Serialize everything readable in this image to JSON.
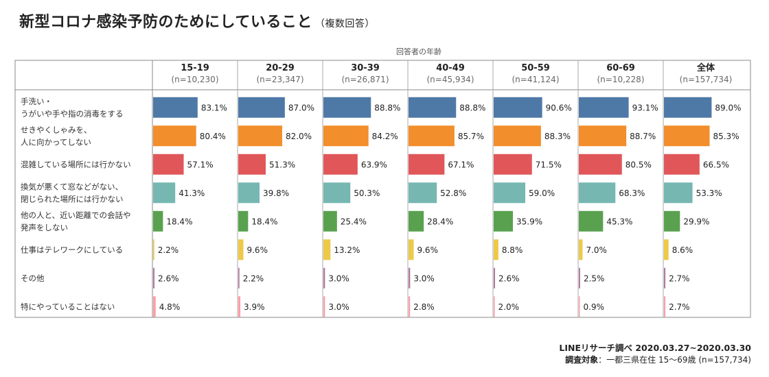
{
  "title": "新型コロナ感染予防のためにしていること",
  "subtitle": "（複数回答）",
  "axis_group_label": "回答者の年齢",
  "source": "LINEリサーチ調べ 2020.03.27~2020.03.30",
  "survey_label": "調査対象",
  "survey_text": "：一都三県在住 15～69歳 (n=157,734)",
  "colors": [
    "#4e79a7",
    "#f28e2b",
    "#e15759",
    "#76b7b2",
    "#59a14f",
    "#edc948",
    "#b07aa1",
    "#ff9da7"
  ],
  "chart_data": {
    "type": "bar",
    "orientation": "horizontal",
    "xlim": [
      0,
      100
    ],
    "categories": [
      [
        "手洗い・",
        "うがいや手や指の消毒をする"
      ],
      [
        "せきやくしゃみを、",
        "人に向かってしない"
      ],
      [
        "混雑している場所には行かない"
      ],
      [
        "換気が悪くて窓などがない、",
        "閉じられた場所には行かない"
      ],
      [
        "他の人と、近い距離での会話や",
        "発声をしない"
      ],
      [
        "仕事はテレワークにしている"
      ],
      [
        "その他"
      ],
      [
        "特にやっていることはない"
      ]
    ],
    "groups": [
      {
        "name": "15-19",
        "n": "(n=10,230)",
        "values": [
          83.1,
          80.4,
          57.1,
          41.3,
          18.4,
          2.2,
          2.6,
          4.8
        ]
      },
      {
        "name": "20-29",
        "n": "(n=23,347)",
        "values": [
          87.0,
          82.0,
          51.3,
          39.8,
          18.4,
          9.6,
          2.2,
          3.9
        ]
      },
      {
        "name": "30-39",
        "n": "(n=26,871)",
        "values": [
          88.8,
          84.2,
          63.9,
          50.3,
          25.4,
          13.2,
          3.0,
          3.0
        ]
      },
      {
        "name": "40-49",
        "n": "(n=45,934)",
        "values": [
          88.8,
          85.7,
          67.1,
          52.8,
          28.4,
          9.6,
          3.0,
          2.8
        ]
      },
      {
        "name": "50-59",
        "n": "(n=41,124)",
        "values": [
          90.6,
          88.3,
          71.5,
          59.0,
          35.9,
          8.8,
          2.6,
          2.0
        ]
      },
      {
        "name": "60-69",
        "n": "(n=10,228)",
        "values": [
          93.1,
          88.7,
          80.5,
          68.3,
          45.3,
          7.0,
          2.5,
          0.9
        ]
      },
      {
        "name": "全体",
        "n": "(n=157,734)",
        "values": [
          89.0,
          85.3,
          66.5,
          53.3,
          29.9,
          8.6,
          2.7,
          2.7
        ]
      }
    ]
  }
}
